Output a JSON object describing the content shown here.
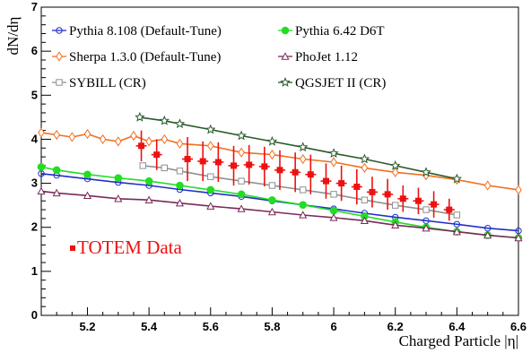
{
  "chart_data": {
    "type": "line",
    "xlabel": "Charged Particle |η|",
    "ylabel": "dN/dη",
    "xlim": [
      5.05,
      6.6
    ],
    "ylim": [
      0,
      7
    ],
    "x_ticks": [
      5.2,
      5.4,
      5.6,
      5.8,
      6,
      6.2,
      6.4,
      6.6
    ],
    "y_ticks": [
      0,
      1,
      2,
      3,
      4,
      5,
      6,
      7
    ],
    "grid": false,
    "legend_position": "top",
    "annotation": "TOTEM Data",
    "series": [
      {
        "name": "Pythia 8.108 (Default-Tune)",
        "color": "#2030c8",
        "marker": "open-circle",
        "x": [
          5.05,
          5.1,
          5.2,
          5.3,
          5.4,
          5.5,
          5.6,
          5.7,
          5.8,
          5.9,
          6.0,
          6.1,
          6.2,
          6.3,
          6.4,
          6.5,
          6.6
        ],
        "y": [
          3.22,
          3.18,
          3.1,
          3.02,
          2.95,
          2.86,
          2.78,
          2.7,
          2.6,
          2.51,
          2.42,
          2.32,
          2.23,
          2.15,
          2.07,
          1.98,
          1.92
        ]
      },
      {
        "name": "Pythia 6.42 D6T",
        "color": "#22dd22",
        "marker": "filled-circle",
        "x": [
          5.05,
          5.1,
          5.2,
          5.3,
          5.4,
          5.5,
          5.6,
          5.7,
          5.8,
          5.9,
          6.0,
          6.1,
          6.2,
          6.3,
          6.4,
          6.5,
          6.6
        ],
        "y": [
          3.37,
          3.3,
          3.2,
          3.12,
          3.05,
          2.95,
          2.85,
          2.75,
          2.62,
          2.51,
          2.38,
          2.25,
          2.12,
          2.0,
          1.9,
          1.82,
          1.76
        ]
      },
      {
        "name": "Sherpa 1.3.0 (Default-Tune)",
        "color": "#f07020",
        "marker": "open-diamond",
        "x": [
          5.05,
          5.1,
          5.15,
          5.2,
          5.25,
          5.3,
          5.35,
          5.4,
          5.45,
          5.5,
          5.6,
          5.7,
          5.8,
          5.9,
          6.0,
          6.1,
          6.2,
          6.3,
          6.4,
          6.5,
          6.6
        ],
        "y": [
          4.15,
          4.1,
          4.05,
          4.12,
          4.0,
          3.95,
          4.08,
          3.95,
          4.0,
          3.9,
          3.85,
          3.7,
          3.65,
          3.55,
          3.48,
          3.35,
          3.25,
          3.18,
          3.08,
          2.95,
          2.85
        ]
      },
      {
        "name": "PhoJet 1.12",
        "color": "#7a2a5a",
        "marker": "open-triangle",
        "x": [
          5.05,
          5.1,
          5.2,
          5.3,
          5.4,
          5.5,
          5.6,
          5.7,
          5.8,
          5.9,
          6.0,
          6.1,
          6.2,
          6.3,
          6.4,
          6.5,
          6.6
        ],
        "y": [
          2.82,
          2.78,
          2.72,
          2.65,
          2.62,
          2.55,
          2.48,
          2.42,
          2.35,
          2.28,
          2.22,
          2.15,
          2.05,
          1.98,
          1.9,
          1.82,
          1.76
        ]
      },
      {
        "name": "SYBILL (CR)",
        "color": "#909090",
        "marker": "open-square",
        "x": [
          5.38,
          5.45,
          5.5,
          5.6,
          5.7,
          5.8,
          5.9,
          6.0,
          6.1,
          6.2,
          6.3,
          6.4
        ],
        "y": [
          3.4,
          3.35,
          3.28,
          3.15,
          3.05,
          2.95,
          2.85,
          2.75,
          2.62,
          2.5,
          2.4,
          2.28
        ]
      },
      {
        "name": "QGSJET II (CR)",
        "color": "#2a5a2a",
        "marker": "open-star",
        "x": [
          5.37,
          5.45,
          5.5,
          5.6,
          5.7,
          5.8,
          5.9,
          6.0,
          6.1,
          6.2,
          6.3,
          6.4
        ],
        "y": [
          4.5,
          4.42,
          4.35,
          4.22,
          4.08,
          3.95,
          3.82,
          3.68,
          3.55,
          3.4,
          3.25,
          3.1
        ]
      },
      {
        "name": "TOTEM Data",
        "color": "#ee1111",
        "marker": "filled-square",
        "x": [
          5.375,
          5.425,
          5.525,
          5.575,
          5.625,
          5.675,
          5.725,
          5.775,
          5.825,
          5.875,
          5.925,
          5.975,
          6.025,
          6.075,
          6.125,
          6.175,
          6.225,
          6.275,
          6.325,
          6.375
        ],
        "y": [
          3.85,
          3.65,
          3.55,
          3.5,
          3.48,
          3.4,
          3.42,
          3.38,
          3.3,
          3.25,
          3.2,
          3.05,
          3.0,
          2.92,
          2.8,
          2.75,
          2.65,
          2.6,
          2.52,
          2.4
        ],
        "err": [
          0.35,
          0.35,
          0.5,
          0.45,
          0.45,
          0.45,
          0.45,
          0.45,
          0.45,
          0.45,
          0.45,
          0.4,
          0.4,
          0.4,
          0.35,
          0.35,
          0.3,
          0.3,
          0.3,
          0.25
        ]
      }
    ]
  }
}
